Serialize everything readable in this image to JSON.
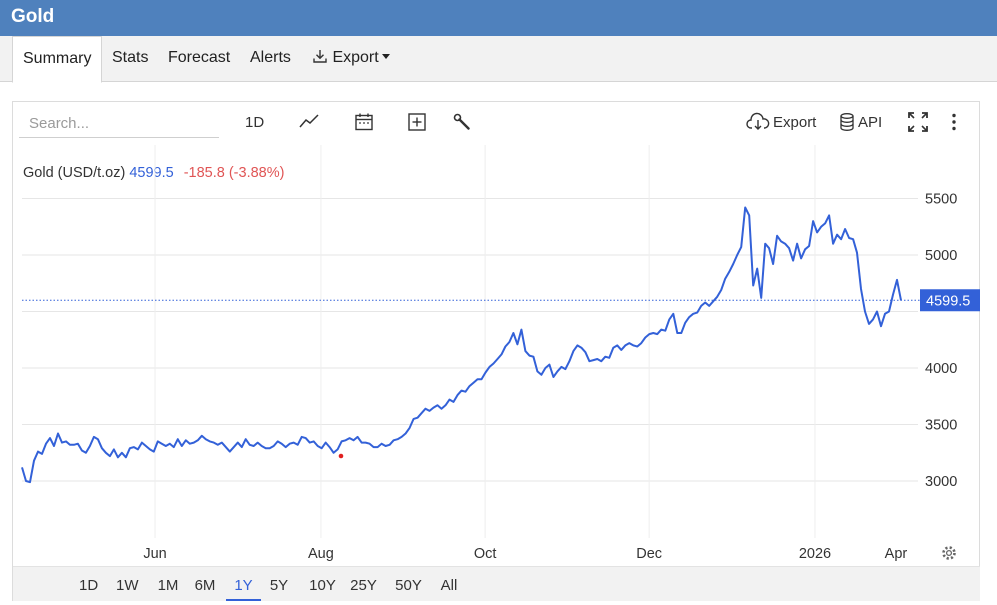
{
  "app": {
    "title": "Gold"
  },
  "tabs": [
    {
      "label": "Summary",
      "active": true
    },
    {
      "label": "Stats"
    },
    {
      "label": "Forecast"
    },
    {
      "label": "Alerts"
    },
    {
      "label": "Export"
    }
  ],
  "toolbar": {
    "search_placeholder": "Search...",
    "interval": "1D",
    "export_label": "Export",
    "api_label": "API"
  },
  "legend": {
    "symbol": "Gold (USD/t.oz)",
    "price": "4599.5",
    "change": "-185.8 (-3.88%)"
  },
  "colors": {
    "line": "#3361d8",
    "change_negative": "#e05555",
    "header": "#4f81bd"
  },
  "chart_data": {
    "type": "line",
    "series": [
      {
        "values": [
          3120,
          3000,
          2990,
          3180,
          3260,
          3240,
          3330,
          3380,
          3310,
          3420,
          3340,
          3350,
          3320,
          3320,
          3330,
          3270,
          3250,
          3310,
          3390,
          3370,
          3290,
          3250,
          3220,
          3280,
          3210,
          3250,
          3210,
          3290,
          3300,
          3280,
          3340,
          3310,
          3280,
          3260,
          3350,
          3330,
          3310,
          3330,
          3300,
          3370,
          3310,
          3360,
          3330,
          3340,
          3360,
          3400,
          3370,
          3350,
          3340,
          3320,
          3340,
          3300,
          3260,
          3300,
          3340,
          3300,
          3370,
          3320,
          3310,
          3340,
          3310,
          3290,
          3290,
          3310,
          3350,
          3330,
          3300,
          3330,
          3340,
          3320,
          3390,
          3380,
          3340,
          3350,
          3310,
          3290,
          3340,
          3300,
          3250,
          3280,
          3350,
          3360,
          3380,
          3360,
          3390,
          3340,
          3340,
          3330,
          3300,
          3300,
          3330,
          3310,
          3320,
          3360,
          3370,
          3390,
          3420,
          3470,
          3550,
          3560,
          3600,
          3640,
          3620,
          3650,
          3670,
          3640,
          3670,
          3720,
          3700,
          3760,
          3800,
          3790,
          3840,
          3870,
          3900,
          3900,
          3960,
          4010,
          4040,
          4080,
          4120,
          4190,
          4230,
          4310,
          4210,
          4340,
          4150,
          4110,
          4100,
          3970,
          3940,
          4000,
          4030,
          3920,
          3970,
          4010,
          3990,
          4060,
          4150,
          4200,
          4180,
          4140,
          4060,
          4070,
          4080,
          4060,
          4100,
          4090,
          4180,
          4200,
          4160,
          4200,
          4220,
          4200,
          4190,
          4220,
          4270,
          4300,
          4310,
          4300,
          4340,
          4330,
          4430,
          4480,
          4310,
          4310,
          4400,
          4450,
          4480,
          4490,
          4550,
          4580,
          4550,
          4590,
          4630,
          4690,
          4790,
          4850,
          4920,
          5000,
          5070,
          5420,
          5350,
          4730,
          4880,
          4620,
          5100,
          5060,
          4920,
          5170,
          5120,
          5100,
          5060,
          4950,
          5100,
          4970,
          5050,
          5080,
          5300,
          5200,
          5250,
          5280,
          5350,
          5100,
          5180,
          5140,
          5230,
          5150,
          5140,
          5020,
          4700,
          4500,
          4390,
          4430,
          4500,
          4370,
          4480,
          4500,
          4650,
          4780,
          4599.5
        ]
      }
    ],
    "x_ticks": [
      "Jun",
      "Aug",
      "Oct",
      "Dec",
      "2026",
      "Apr"
    ],
    "x_tick_positions": [
      0.1555,
      0.3219,
      0.4866,
      0.6511,
      0.8174,
      0.9789
    ],
    "y_ticks": [
      3000,
      3500,
      4000,
      4500,
      5000,
      5500
    ],
    "y_tick_labels": [
      "3000",
      "3500",
      "4000",
      "",
      "5000",
      "5500"
    ],
    "ylim": [
      2500,
      5900
    ],
    "last_value": 4599.5,
    "last_value_label": "4599.5",
    "grid": true
  },
  "ranges": [
    {
      "label": "1D"
    },
    {
      "label": "1W"
    },
    {
      "label": "1M"
    },
    {
      "label": "6M"
    },
    {
      "label": "1Y",
      "active": true
    },
    {
      "label": "5Y"
    },
    {
      "label": "10Y"
    },
    {
      "label": "25Y"
    },
    {
      "label": "50Y"
    },
    {
      "label": "All"
    }
  ]
}
